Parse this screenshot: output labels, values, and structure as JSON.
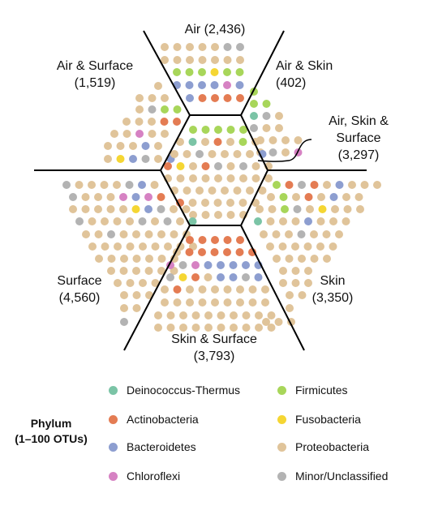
{
  "regions": {
    "air": {
      "name": "Air",
      "count": "(2,436)"
    },
    "air_skin": {
      "name": "Air & Skin",
      "count": "(402)"
    },
    "air_surface": {
      "name": "Air & Surface",
      "count": "(1,519)"
    },
    "center": {
      "line1": "Air, Skin &",
      "line2": "Surface",
      "count": "(3,297)"
    },
    "surface": {
      "name": "Surface",
      "count": "(4,560)"
    },
    "skin": {
      "name": "Skin",
      "count": "(3,350)"
    },
    "skin_surface": {
      "name": "Skin & Surface",
      "count": "(3,793)"
    }
  },
  "legend": {
    "title_line1": "Phylum",
    "title_line2": "(1–100 OTUs)",
    "items": [
      {
        "label": "Deinococcus-Thermus",
        "color": "#7bc4a6",
        "icon": "circle"
      },
      {
        "label": "Firmicutes",
        "color": "#a8d65a",
        "icon": "circle"
      },
      {
        "label": "Actinobacteria",
        "color": "#e47c53",
        "icon": "circle"
      },
      {
        "label": "Fusobacteria",
        "color": "#f5d633",
        "icon": "circle"
      },
      {
        "label": "Bacteroidetes",
        "color": "#8d9ed0",
        "icon": "circle"
      },
      {
        "label": "Proteobacteria",
        "color": "#e0c49a",
        "icon": "circle"
      },
      {
        "label": "Chloroflexi",
        "color": "#d682c3",
        "icon": "circle"
      },
      {
        "label": "Minor/Unclassified",
        "color": "#b3b3b3",
        "icon": "circle"
      }
    ]
  },
  "colors": {
    "line": "#000000"
  }
}
